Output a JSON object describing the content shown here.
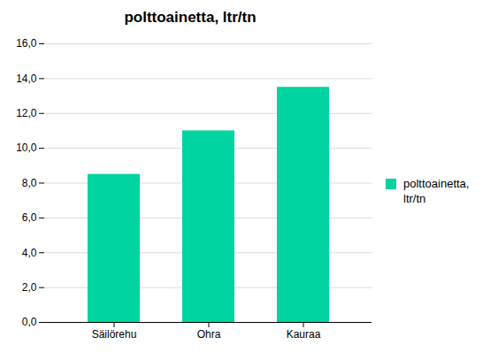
{
  "chart_data": {
    "type": "bar",
    "title": "polttoainetta, ltr/tn",
    "categories": [
      "Säilörehu",
      "Ohra",
      "Kauraa"
    ],
    "series": [
      {
        "name": "polttoainetta,\nltr/tn",
        "color": "#00D4A0",
        "values": [
          8.5,
          11.0,
          13.5
        ]
      }
    ],
    "ylim": [
      0,
      16
    ],
    "yticks": [
      {
        "value": 0,
        "label": "0,0"
      },
      {
        "value": 2,
        "label": "2,0"
      },
      {
        "value": 4,
        "label": "4,0"
      },
      {
        "value": 6,
        "label": "6,0"
      },
      {
        "value": 8,
        "label": "8,0"
      },
      {
        "value": 10,
        "label": "10,0"
      },
      {
        "value": 12,
        "label": "12,0"
      },
      {
        "value": 14,
        "label": "14,0"
      },
      {
        "value": 16,
        "label": "16,0"
      }
    ],
    "grid": true,
    "legend": "right"
  }
}
